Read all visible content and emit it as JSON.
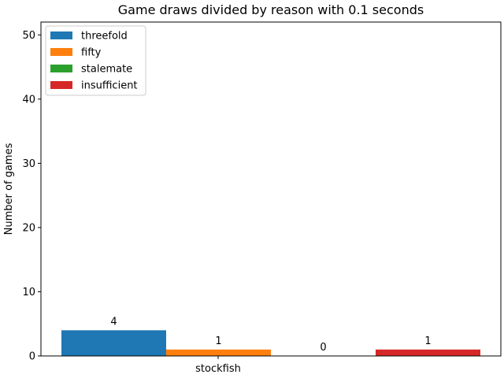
{
  "chart_data": {
    "type": "bar",
    "title": "Game draws divided by reason with 0.1 seconds",
    "xlabel": "",
    "ylabel": "Number of games",
    "categories": [
      "stockfish"
    ],
    "series": [
      {
        "name": "threefold",
        "values": [
          4
        ],
        "color": "#1f77b4"
      },
      {
        "name": "fifty",
        "values": [
          1
        ],
        "color": "#ff7f0e"
      },
      {
        "name": "stalemate",
        "values": [
          0
        ],
        "color": "#2ca02c"
      },
      {
        "name": "insufficient",
        "values": [
          1
        ],
        "color": "#d62728"
      }
    ],
    "ylim": [
      0,
      52
    ],
    "yticks": [
      0,
      10,
      20,
      30,
      40,
      50
    ],
    "grid": false,
    "legend": "top-left"
  }
}
